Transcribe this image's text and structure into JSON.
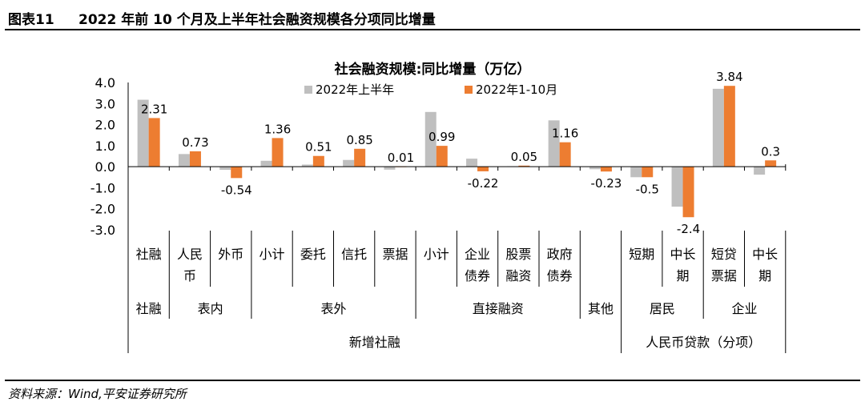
{
  "figure": {
    "label": "图表11",
    "title": "2022 年前 10 个月及上半年社会融资规模各分项同比增量",
    "source": "资料来源：Wind,平安证券研究所"
  },
  "chart_data": {
    "type": "bar",
    "title": "社会融资规模:同比增量（万亿）",
    "ylim": [
      -3.0,
      4.0
    ],
    "yticks": [
      "4.0",
      "3.0",
      "2.0",
      "1.0",
      "0.0",
      "-1.0",
      "-2.0",
      "-3.0"
    ],
    "colors": {
      "h1": "#bfbfbf",
      "oct": "#ed7d31",
      "axis": "#000000"
    },
    "series": [
      {
        "name": "2022年上半年",
        "values": [
          3.18,
          0.6,
          -0.15,
          0.28,
          0.1,
          0.32,
          -0.14,
          2.6,
          0.38,
          0.02,
          2.2,
          -0.12,
          -0.5,
          -1.9,
          3.7,
          -0.38
        ]
      },
      {
        "name": "2022年1-10月",
        "values": [
          2.31,
          0.73,
          -0.54,
          1.36,
          0.51,
          0.85,
          0.01,
          0.99,
          -0.22,
          0.05,
          1.16,
          -0.23,
          -0.5,
          -2.4,
          3.84,
          0.3
        ]
      }
    ],
    "data_labels": [
      "2.31",
      "0.73",
      "-0.54",
      "1.36",
      "0.51",
      "0.85",
      "0.01",
      "0.99",
      "-0.22",
      "0.05",
      "1.16",
      "-0.23",
      "-0.5",
      "-2.4",
      "3.84",
      "0.3"
    ],
    "categories_l1": [
      [
        "社融"
      ],
      [
        "人民",
        "币"
      ],
      [
        "外币"
      ],
      [
        "小计"
      ],
      [
        "委托"
      ],
      [
        "信托"
      ],
      [
        "票据"
      ],
      [
        "小计"
      ],
      [
        "企业",
        "债券"
      ],
      [
        "股票",
        "融资"
      ],
      [
        "政府",
        "债券"
      ],
      [
        ""
      ],
      [
        "短期"
      ],
      [
        "中长",
        "期"
      ],
      [
        "短贷",
        "票据"
      ],
      [
        "中长",
        "期"
      ]
    ],
    "groups_l2": [
      {
        "label": "社融",
        "start": 0,
        "end": 0
      },
      {
        "label": "表内",
        "start": 1,
        "end": 2
      },
      {
        "label": "表外",
        "start": 3,
        "end": 6
      },
      {
        "label": "直接融资",
        "start": 7,
        "end": 10
      },
      {
        "label": "其他",
        "start": 11,
        "end": 11
      },
      {
        "label": "居民",
        "start": 12,
        "end": 13
      },
      {
        "label": "企业",
        "start": 14,
        "end": 15
      }
    ],
    "groups_l3": [
      {
        "label": "新增社融",
        "start": 0,
        "end": 11
      },
      {
        "label": "人民币贷款（分项）",
        "start": 12,
        "end": 15
      }
    ]
  }
}
